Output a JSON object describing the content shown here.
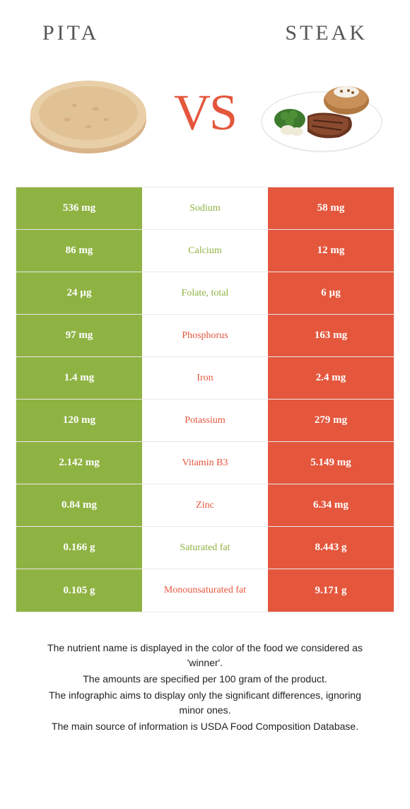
{
  "header": {
    "left_title": "PITA",
    "right_title": "STEAK",
    "vs": "VS"
  },
  "colors": {
    "green": "#8fb343",
    "orange": "#e4573d",
    "row_border": "#e8e8e8",
    "title_text": "#555555",
    "footer_text": "#222222"
  },
  "rows": [
    {
      "left": "536 mg",
      "label": "Sodium",
      "right": "58 mg",
      "winner": "left"
    },
    {
      "left": "86 mg",
      "label": "Calcium",
      "right": "12 mg",
      "winner": "left"
    },
    {
      "left": "24 µg",
      "label": "Folate, total",
      "right": "6 µg",
      "winner": "left"
    },
    {
      "left": "97 mg",
      "label": "Phosphorus",
      "right": "163 mg",
      "winner": "right"
    },
    {
      "left": "1.4 mg",
      "label": "Iron",
      "right": "2.4 mg",
      "winner": "right"
    },
    {
      "left": "120 mg",
      "label": "Potassium",
      "right": "279 mg",
      "winner": "right"
    },
    {
      "left": "2.142 mg",
      "label": "Vitamin B3",
      "right": "5.149 mg",
      "winner": "right"
    },
    {
      "left": "0.84 mg",
      "label": "Zinc",
      "right": "6.34 mg",
      "winner": "right"
    },
    {
      "left": "0.166 g",
      "label": "Saturated fat",
      "right": "8.443 g",
      "winner": "left"
    },
    {
      "left": "0.105 g",
      "label": "Monounsaturated fat",
      "right": "9.171 g",
      "winner": "right"
    }
  ],
  "footer": {
    "line1": "The nutrient name is displayed in the color of the food we considered as 'winner'.",
    "line2": "The amounts are specified per 100 gram of the product.",
    "line3": "The infographic aims to display only the significant differences, ignoring minor ones.",
    "line4": "The main source of information is USDA Food Composition Database."
  }
}
